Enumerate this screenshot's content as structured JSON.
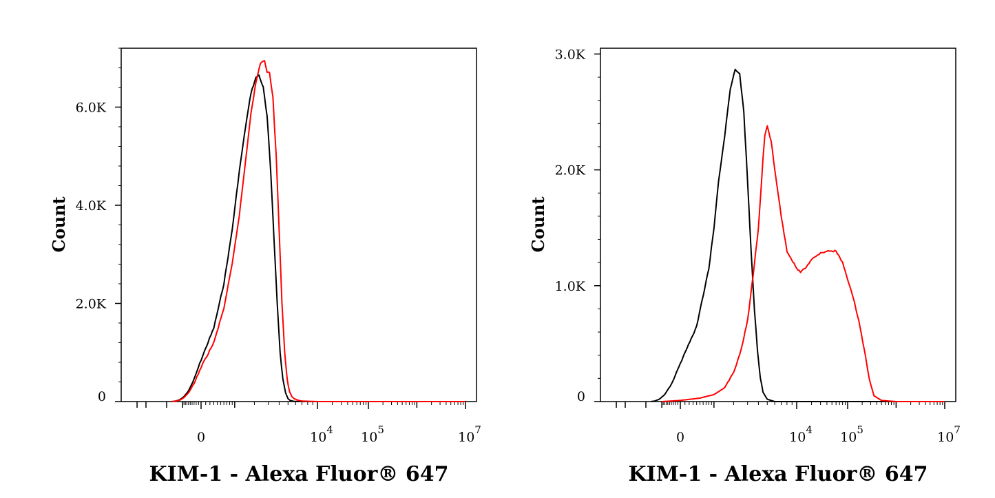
{
  "colors": {
    "control": "#000000",
    "sample": "#ff0000",
    "axis": "#000000"
  },
  "chart_data": [
    {
      "type": "line",
      "title": "",
      "xlabel": "KIM-1 - Alexa Fluor® 647",
      "ylabel": "Count",
      "x_scale": "biexponential",
      "x_ticks": [
        {
          "base": "0",
          "sup": ""
        },
        {
          "base": "10",
          "sup": "4"
        },
        {
          "base": "10",
          "sup": "5"
        },
        {
          "base": "10",
          "sup": "7"
        }
      ],
      "y_ticks": [
        {
          "value": 0,
          "label": "0"
        },
        {
          "value": 2000,
          "label": "2.0K"
        },
        {
          "value": 4000,
          "label": "4.0K"
        },
        {
          "value": 6000,
          "label": "6.0K"
        }
      ],
      "ylim": [
        0,
        7200
      ],
      "grid": false,
      "series": [
        {
          "color": "#000000",
          "x": [
            -2000,
            -1600,
            -1200,
            -900,
            -600,
            -300,
            0,
            300,
            600,
            900,
            1200,
            1500,
            1800,
            2100,
            2300,
            2600,
            2900,
            3200,
            3500,
            3800,
            4100,
            4400,
            4700,
            5000,
            5300,
            5800,
            7000,
            10000,
            100000,
            10000000
          ],
          "y": [
            0,
            10,
            40,
            100,
            220,
            450,
            850,
            1500,
            2400,
            3500,
            4700,
            5600,
            6300,
            6600,
            6650,
            6400,
            5800,
            4700,
            3300,
            2000,
            1000,
            450,
            180,
            60,
            20,
            5,
            0,
            0,
            0,
            0
          ]
        },
        {
          "color": "#ff0000",
          "x": [
            -2000,
            -1600,
            -1200,
            -900,
            -600,
            -300,
            0,
            300,
            600,
            900,
            1200,
            1500,
            1800,
            2100,
            2400,
            2700,
            2900,
            3100,
            3400,
            3700,
            4000,
            4300,
            4600,
            4900,
            5200,
            5500,
            5800,
            6300,
            7000,
            10000,
            100000,
            10000000
          ],
          "y": [
            0,
            10,
            30,
            80,
            180,
            360,
            700,
            1200,
            1900,
            2800,
            3800,
            4900,
            5900,
            6500,
            6900,
            6950,
            6700,
            6700,
            6200,
            5000,
            3500,
            2000,
            1000,
            450,
            200,
            100,
            60,
            30,
            10,
            0,
            0,
            0
          ]
        }
      ]
    },
    {
      "type": "line",
      "title": "",
      "xlabel": "KIM-1 - Alexa Fluor® 647",
      "ylabel": "Count",
      "x_scale": "biexponential",
      "x_ticks": [
        {
          "base": "0",
          "sup": ""
        },
        {
          "base": "10",
          "sup": "4"
        },
        {
          "base": "10",
          "sup": "5"
        },
        {
          "base": "10",
          "sup": "7"
        }
      ],
      "y_ticks": [
        {
          "value": 0,
          "label": "0"
        },
        {
          "value": 1000,
          "label": "1.0K"
        },
        {
          "value": 2000,
          "label": "2.0K"
        },
        {
          "value": 3000,
          "label": "3.0K"
        }
      ],
      "ylim": [
        0,
        3050
      ],
      "grid": false,
      "series": [
        {
          "color": "#000000",
          "x": [
            -2000,
            -1600,
            -1200,
            -800,
            -400,
            0,
            400,
            800,
            1000,
            1200,
            1500,
            1800,
            2100,
            2400,
            2700,
            3000,
            3300,
            3600,
            3900,
            4200,
            4500,
            5000,
            6000,
            10000,
            100000,
            10000000
          ],
          "y": [
            0,
            5,
            20,
            60,
            150,
            330,
            650,
            1150,
            1500,
            1900,
            2300,
            2700,
            2870,
            2830,
            2500,
            1900,
            1300,
            800,
            450,
            200,
            80,
            20,
            0,
            0,
            0,
            0
          ],
          "reading_note": ""
        },
        {
          "color": "#ff0000",
          "x": [
            -1000,
            0,
            500,
            1000,
            1500,
            2000,
            2500,
            3000,
            3500,
            4000,
            4500,
            4700,
            5000,
            5500,
            6000,
            6500,
            7000,
            8000,
            10000,
            12000,
            15000,
            20000,
            30000,
            40000,
            60000,
            80000,
            100000,
            130000,
            170000,
            220000,
            280000,
            350000,
            500000,
            1000000,
            10000000
          ],
          "y": [
            0,
            10,
            30,
            60,
            120,
            250,
            450,
            700,
            1100,
            1500,
            2100,
            2300,
            2380,
            2250,
            2000,
            1800,
            1600,
            1300,
            1150,
            1120,
            1150,
            1230,
            1280,
            1300,
            1300,
            1200,
            1050,
            900,
            700,
            450,
            200,
            50,
            10,
            0,
            0
          ]
        }
      ]
    }
  ]
}
